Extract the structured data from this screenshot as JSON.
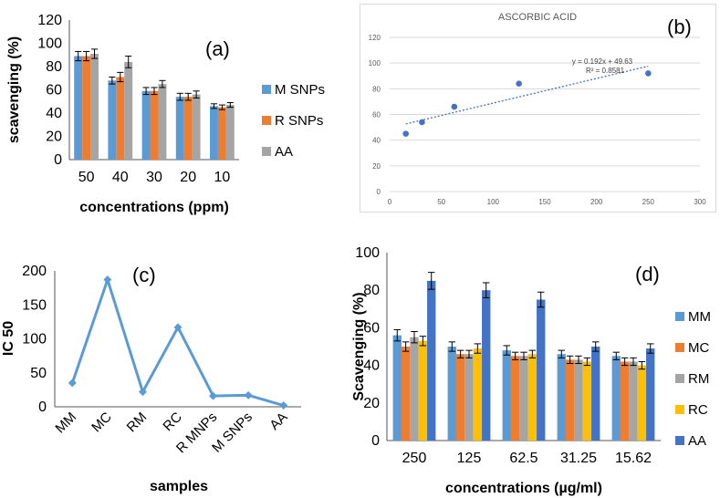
{
  "chart_data": [
    {
      "panel": "(a)",
      "type": "bar",
      "title": "",
      "xlabel": "concentrations (ppm)",
      "ylabel": "scavenging (%)",
      "ylim": [
        0,
        120
      ],
      "yticks": [
        0,
        20,
        40,
        60,
        80,
        100,
        120
      ],
      "categories": [
        "50",
        "40",
        "30",
        "20",
        "10"
      ],
      "series": [
        {
          "name": "M SNPs",
          "color": "#5B9BD5",
          "values": [
            89,
            68,
            59,
            54,
            46
          ],
          "errors": [
            4,
            3,
            3,
            3,
            2
          ]
        },
        {
          "name": "R SNPs",
          "color": "#ED7D31",
          "values": [
            89,
            71,
            59,
            54,
            45
          ],
          "errors": [
            4,
            4,
            3,
            3,
            2
          ]
        },
        {
          "name": "AA",
          "color": "#A5A5A5",
          "values": [
            91,
            84,
            65,
            56,
            47
          ],
          "errors": [
            4,
            5,
            3,
            3,
            2
          ]
        }
      ],
      "legend": "right"
    },
    {
      "panel": "(b)",
      "type": "scatter",
      "title": "ASCORBIC ACID",
      "xlabel": "",
      "ylabel": "",
      "xlim": [
        0,
        300
      ],
      "ylim": [
        0,
        120
      ],
      "xticks": [
        0,
        50,
        100,
        150,
        200,
        250,
        300
      ],
      "yticks": [
        0,
        20,
        40,
        60,
        80,
        100,
        120
      ],
      "x": [
        15.62,
        31.25,
        62.5,
        125,
        250
      ],
      "y": [
        45,
        54,
        66,
        84,
        92
      ],
      "color": "#4472C4",
      "trendline": {
        "slope": 0.192,
        "intercept": 49.63,
        "equation": "y = 0.192x + 49.63",
        "r2": "R² = 0.8581"
      }
    },
    {
      "panel": "(c)",
      "type": "line",
      "title": "",
      "xlabel": "samples",
      "ylabel": "IC 50",
      "ylim": [
        0,
        200
      ],
      "yticks": [
        0,
        50,
        100,
        150,
        200
      ],
      "categories": [
        "MM",
        "MC",
        "RM",
        "RC",
        "R MNPs",
        "M SNPs",
        "AA"
      ],
      "values": [
        35,
        187,
        22,
        117,
        16,
        17,
        2
      ],
      "color": "#5B9BD5"
    },
    {
      "panel": "(d)",
      "type": "bar",
      "title": "",
      "xlabel": "concentrations (µg/ml)",
      "ylabel": "Scavenging (%)",
      "ylim": [
        0,
        100
      ],
      "yticks": [
        0,
        20,
        40,
        60,
        80,
        100
      ],
      "categories": [
        "250",
        "125",
        "62.5",
        "31.25",
        "15.62"
      ],
      "series": [
        {
          "name": "MM",
          "color": "#5B9BD5",
          "values": [
            56,
            50,
            48,
            46,
            45
          ],
          "errors": [
            3,
            2.5,
            2.5,
            2,
            2
          ]
        },
        {
          "name": "MC",
          "color": "#ED7D31",
          "values": [
            50,
            46,
            45,
            43,
            42
          ],
          "errors": [
            2.5,
            2,
            2,
            2,
            2
          ]
        },
        {
          "name": "RM",
          "color": "#A5A5A5",
          "values": [
            55,
            46,
            45,
            43,
            42
          ],
          "errors": [
            3,
            2,
            2,
            2,
            2
          ]
        },
        {
          "name": "RC",
          "color": "#FFC000",
          "values": [
            53,
            49,
            46,
            42,
            40
          ],
          "errors": [
            2.5,
            2.5,
            2,
            2,
            2
          ]
        },
        {
          "name": "AA",
          "color": "#4472C4",
          "values": [
            85,
            80,
            75,
            50,
            49
          ],
          "errors": [
            4.5,
            4,
            4,
            2.5,
            2.5
          ]
        }
      ],
      "legend": "right"
    }
  ]
}
